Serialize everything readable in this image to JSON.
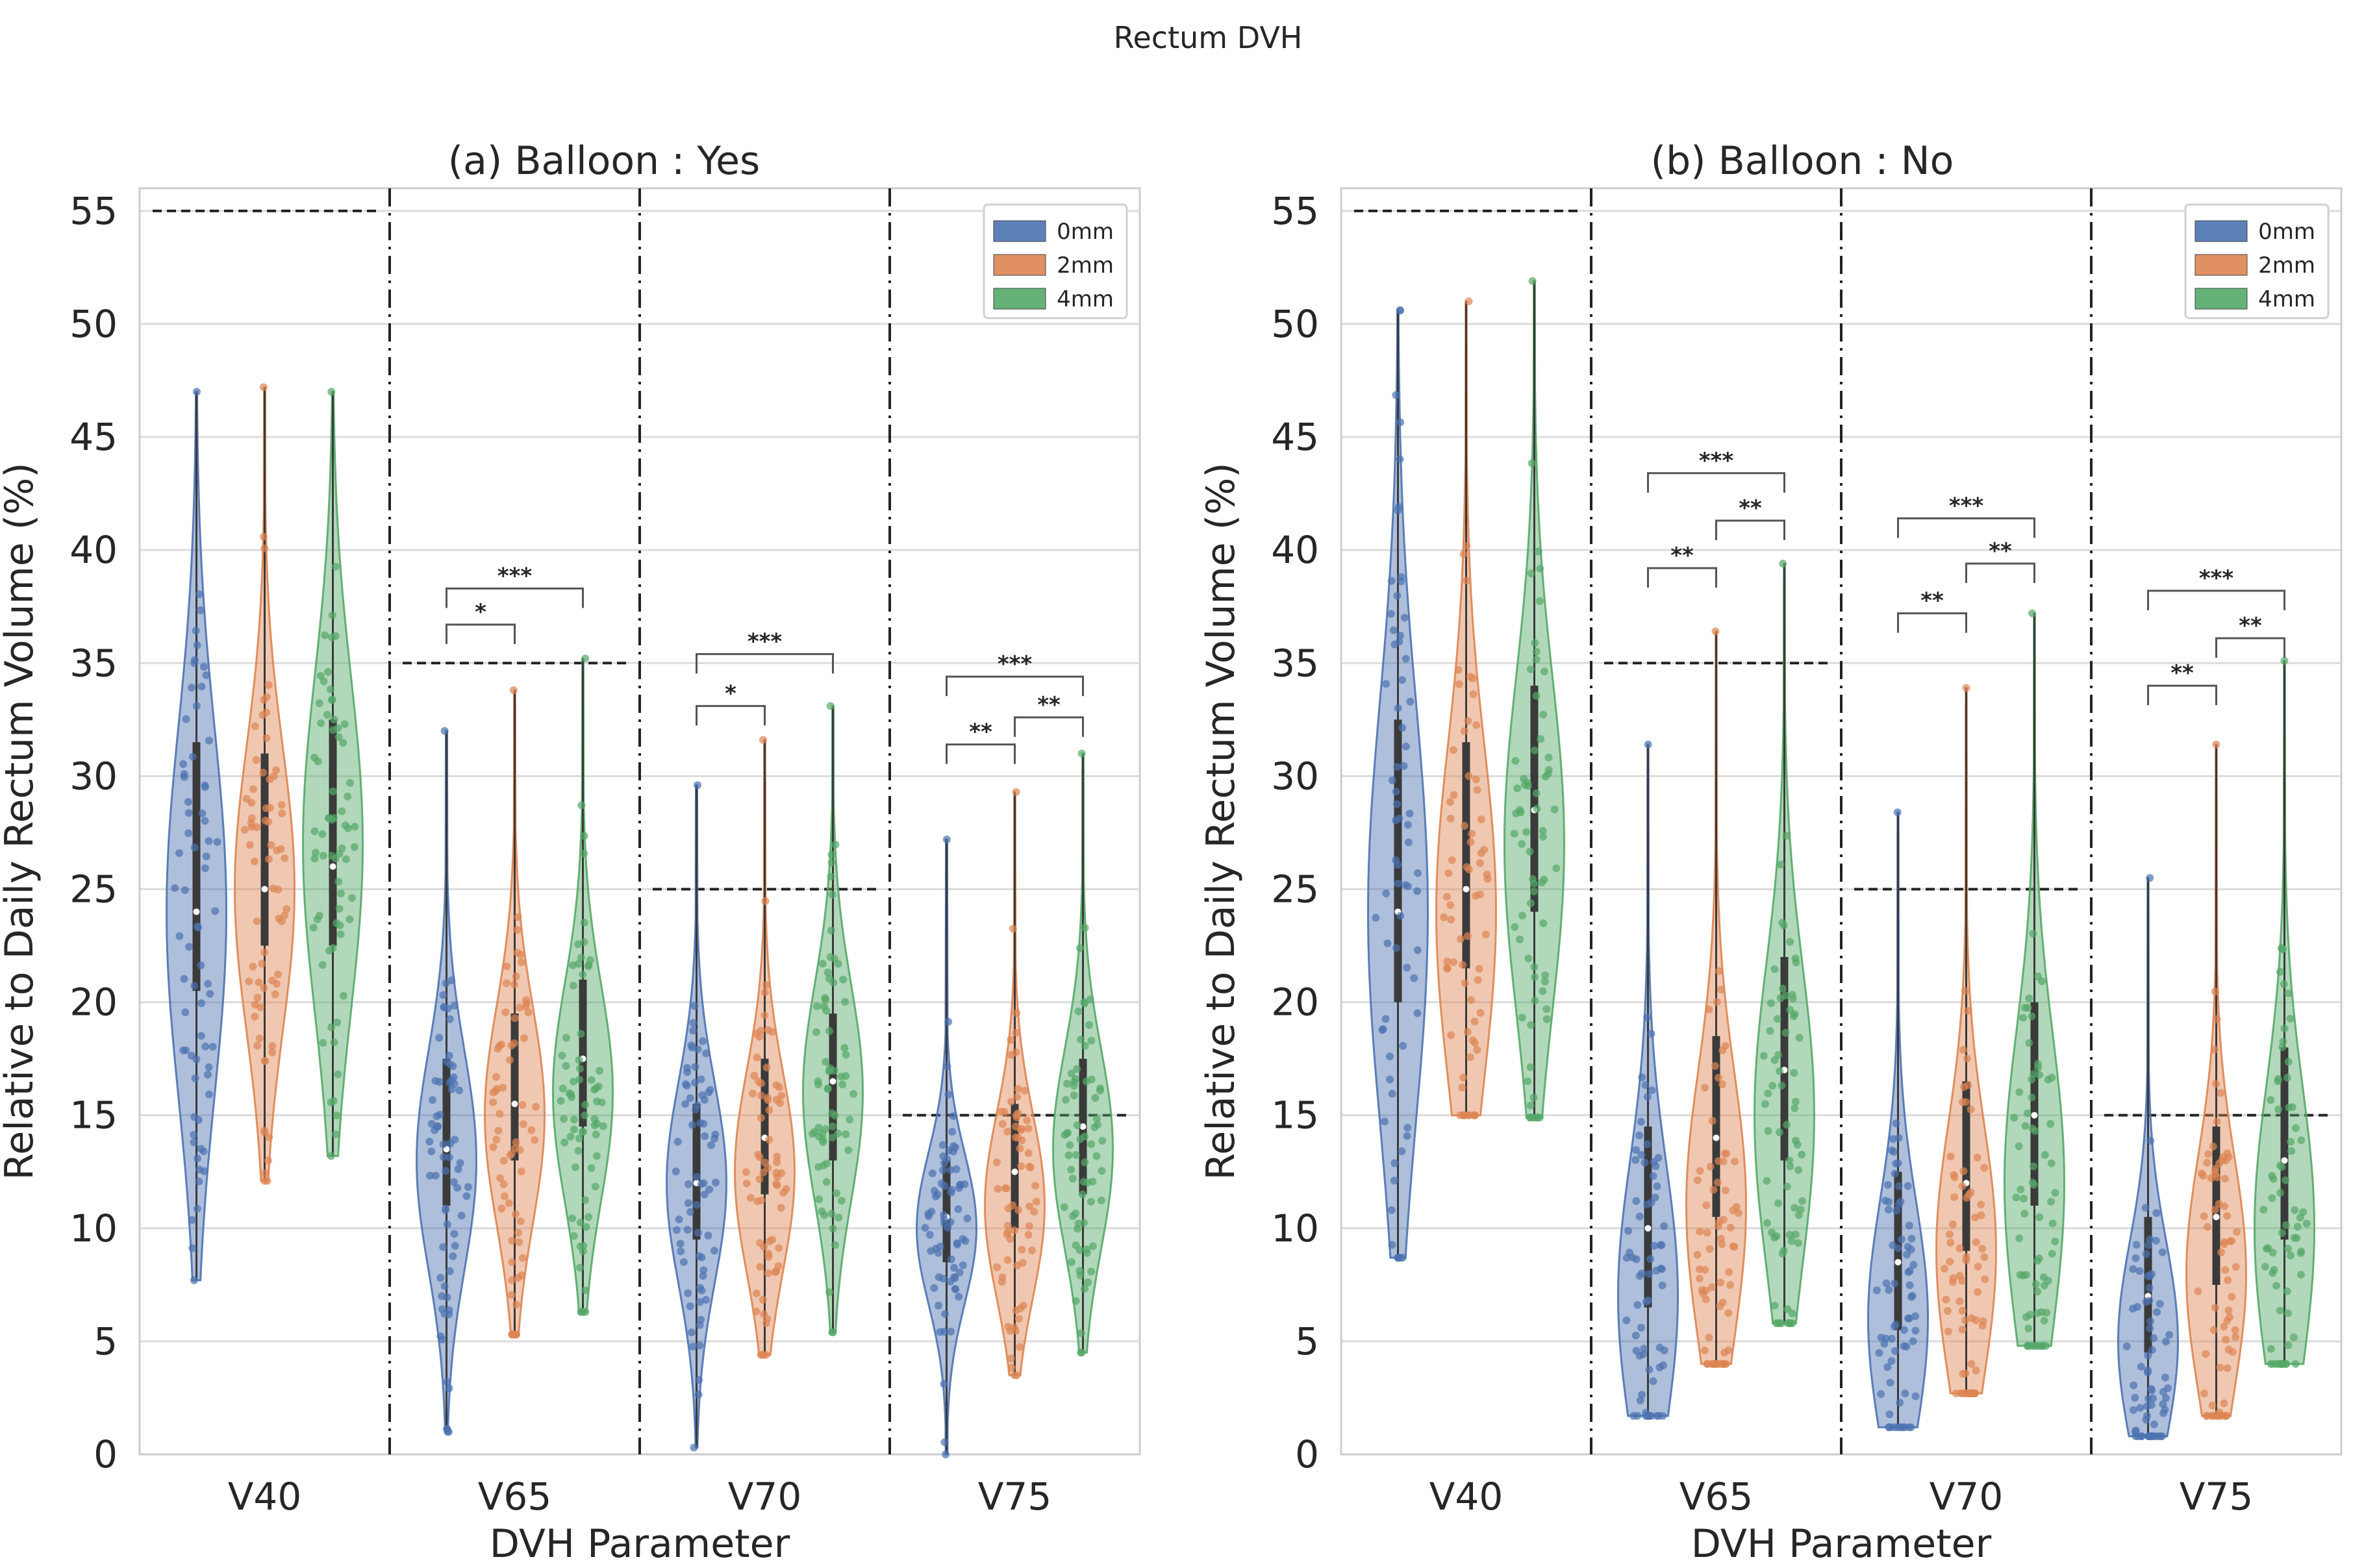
{
  "chart_data": {
    "title": "Rectum DVH",
    "type": "violin",
    "ylabel": "Relative to Daily Rectum Volume (%)",
    "xlabel": "DVH Parameter",
    "ylim": [
      0,
      56
    ],
    "yticks": [
      0,
      5,
      10,
      15,
      20,
      25,
      30,
      35,
      40,
      45,
      50,
      55
    ],
    "categories": [
      "V40",
      "V65",
      "V70",
      "V75"
    ],
    "series_names": [
      "0mm",
      "2mm",
      "4mm"
    ],
    "colors": {
      "0mm": "#4c72b0",
      "2mm": "#dd8452",
      "4mm": "#55a868"
    },
    "panels": [
      {
        "title": "(a) Balloon : Yes",
        "thresholds": [
          55,
          35,
          25,
          15
        ],
        "groups": [
          {
            "category": "V40",
            "violins": [
              {
                "series": "0mm",
                "min": 7.7,
                "q1": 20.5,
                "median": 24.0,
                "q3": 31.5,
                "max": 47.0,
                "mode": 24
              },
              {
                "series": "2mm",
                "min": 12.1,
                "q1": 22.5,
                "median": 25.0,
                "q3": 31.0,
                "max": 47.2,
                "mode": 25
              },
              {
                "series": "4mm",
                "min": 13.2,
                "q1": 22.5,
                "median": 26.0,
                "q3": 32.5,
                "max": 47.0,
                "mode": 27
              }
            ]
          },
          {
            "category": "V65",
            "violins": [
              {
                "series": "0mm",
                "min": 1.0,
                "q1": 11.0,
                "median": 13.5,
                "q3": 17.5,
                "max": 32.0,
                "mode": 13
              },
              {
                "series": "2mm",
                "min": 5.3,
                "q1": 13.0,
                "median": 15.5,
                "q3": 19.5,
                "max": 33.8,
                "mode": 15
              },
              {
                "series": "4mm",
                "min": 6.3,
                "q1": 14.5,
                "median": 17.5,
                "q3": 21.0,
                "max": 35.2,
                "mode": 16
              }
            ]
          },
          {
            "category": "V70",
            "violins": [
              {
                "series": "0mm",
                "min": 0.3,
                "q1": 9.5,
                "median": 12.0,
                "q3": 15.5,
                "max": 29.6,
                "mode": 12
              },
              {
                "series": "2mm",
                "min": 4.4,
                "q1": 11.5,
                "median": 14.0,
                "q3": 17.5,
                "max": 31.6,
                "mode": 12.5
              },
              {
                "series": "4mm",
                "min": 5.4,
                "q1": 13.0,
                "median": 16.5,
                "q3": 19.5,
                "max": 33.1,
                "mode": 16
              }
            ]
          },
          {
            "category": "V75",
            "violins": [
              {
                "series": "0mm",
                "min": 0.0,
                "q1": 8.5,
                "median": 10.5,
                "q3": 13.0,
                "max": 27.2,
                "mode": 10
              },
              {
                "series": "2mm",
                "min": 3.5,
                "q1": 10.0,
                "median": 12.5,
                "q3": 15.5,
                "max": 29.3,
                "mode": 11
              },
              {
                "series": "4mm",
                "min": 4.5,
                "q1": 11.5,
                "median": 14.5,
                "q3": 17.5,
                "max": 31.0,
                "mode": 13.5
              }
            ]
          }
        ],
        "significance": [
          {
            "category": "V65",
            "from": "0mm",
            "to": "2mm",
            "y": 36.7,
            "label": "*"
          },
          {
            "category": "V65",
            "from": "0mm",
            "to": "4mm",
            "y": 38.3,
            "label": "***"
          },
          {
            "category": "V70",
            "from": "0mm",
            "to": "2mm",
            "y": 33.1,
            "label": "*"
          },
          {
            "category": "V70",
            "from": "0mm",
            "to": "4mm",
            "y": 35.4,
            "label": "***"
          },
          {
            "category": "V75",
            "from": "0mm",
            "to": "2mm",
            "y": 31.4,
            "label": "**"
          },
          {
            "category": "V75",
            "from": "2mm",
            "to": "4mm",
            "y": 32.6,
            "label": "**"
          },
          {
            "category": "V75",
            "from": "0mm",
            "to": "4mm",
            "y": 34.4,
            "label": "***"
          }
        ]
      },
      {
        "title": "(b) Balloon : No",
        "thresholds": [
          55,
          35,
          25,
          15
        ],
        "groups": [
          {
            "category": "V40",
            "violins": [
              {
                "series": "0mm",
                "min": 8.7,
                "q1": 20.0,
                "median": 24.0,
                "q3": 32.5,
                "max": 50.6,
                "mode": 24
              },
              {
                "series": "2mm",
                "min": 15.0,
                "q1": 21.5,
                "median": 25.0,
                "q3": 31.5,
                "max": 51.0,
                "mode": 24
              },
              {
                "series": "4mm",
                "min": 14.9,
                "q1": 24.0,
                "median": 28.5,
                "q3": 34.0,
                "max": 51.9,
                "mode": 27
              }
            ]
          },
          {
            "category": "V65",
            "violins": [
              {
                "series": "0mm",
                "min": 1.7,
                "q1": 6.5,
                "median": 10.0,
                "q3": 14.5,
                "max": 31.4,
                "mode": 7
              },
              {
                "series": "2mm",
                "min": 4.0,
                "q1": 10.5,
                "median": 14.0,
                "q3": 18.5,
                "max": 36.4,
                "mode": 11
              },
              {
                "series": "4mm",
                "min": 5.8,
                "q1": 13.0,
                "median": 17.0,
                "q3": 22.0,
                "max": 39.4,
                "mode": 15
              }
            ]
          },
          {
            "category": "V70",
            "violins": [
              {
                "series": "0mm",
                "min": 1.2,
                "q1": 5.5,
                "median": 8.5,
                "q3": 12.5,
                "max": 28.4,
                "mode": 6
              },
              {
                "series": "2mm",
                "min": 2.7,
                "q1": 9.0,
                "median": 12.0,
                "q3": 16.5,
                "max": 33.9,
                "mode": 9
              },
              {
                "series": "4mm",
                "min": 4.8,
                "q1": 11.0,
                "median": 15.0,
                "q3": 20.0,
                "max": 37.2,
                "mode": 12
              }
            ]
          },
          {
            "category": "V75",
            "violins": [
              {
                "series": "0mm",
                "min": 0.8,
                "q1": 4.5,
                "median": 7.0,
                "q3": 10.5,
                "max": 25.5,
                "mode": 5
              },
              {
                "series": "2mm",
                "min": 1.7,
                "q1": 7.5,
                "median": 10.5,
                "q3": 14.5,
                "max": 31.4,
                "mode": 8
              },
              {
                "series": "4mm",
                "min": 4.0,
                "q1": 9.5,
                "median": 13.0,
                "q3": 18.0,
                "max": 35.1,
                "mode": 10
              }
            ]
          }
        ],
        "significance": [
          {
            "category": "V65",
            "from": "0mm",
            "to": "2mm",
            "y": 39.2,
            "label": "**"
          },
          {
            "category": "V65",
            "from": "2mm",
            "to": "4mm",
            "y": 41.3,
            "label": "**"
          },
          {
            "category": "V65",
            "from": "0mm",
            "to": "4mm",
            "y": 43.4,
            "label": "***"
          },
          {
            "category": "V70",
            "from": "0mm",
            "to": "2mm",
            "y": 37.2,
            "label": "**"
          },
          {
            "category": "V70",
            "from": "2mm",
            "to": "4mm",
            "y": 39.4,
            "label": "**"
          },
          {
            "category": "V70",
            "from": "0mm",
            "to": "4mm",
            "y": 41.4,
            "label": "***"
          },
          {
            "category": "V75",
            "from": "0mm",
            "to": "2mm",
            "y": 34.0,
            "label": "**"
          },
          {
            "category": "V75",
            "from": "2mm",
            "to": "4mm",
            "y": 36.1,
            "label": "**"
          },
          {
            "category": "V75",
            "from": "0mm",
            "to": "4mm",
            "y": 38.2,
            "label": "***"
          }
        ]
      }
    ]
  }
}
